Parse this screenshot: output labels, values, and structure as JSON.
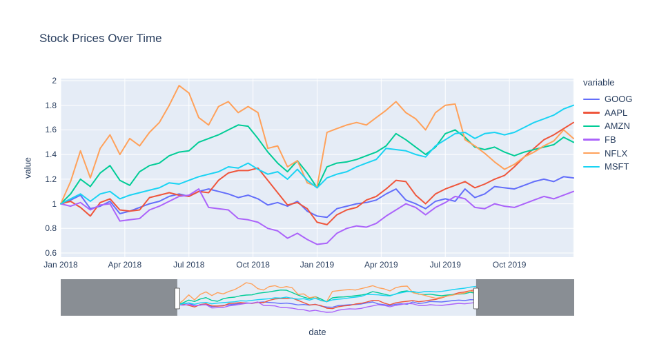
{
  "header": {
    "title": "Stock Prices Over Time"
  },
  "axes": {
    "x_title": "date",
    "y_title": "value"
  },
  "legend": {
    "title": "variable"
  },
  "colors": {
    "plot_bg": "#E5ECF6",
    "grid": "#FFFFFF",
    "text": "#2A3F5F",
    "slider_mask": "#898E94",
    "slider_handle_fill": "#FFFFFF",
    "slider_handle_border": "#666666"
  },
  "chart_data": {
    "type": "line",
    "title": "Stock Prices Over Time",
    "xlabel": "date",
    "ylabel": "value",
    "legend_title": "variable",
    "legend_position": "right",
    "grid": true,
    "ylim": [
      0.566,
      2.017
    ],
    "y_ticks": [
      0.6,
      0.8,
      1,
      1.2,
      1.4,
      1.6,
      1.8,
      2
    ],
    "y_tick_labels": [
      "0.6",
      "0.8",
      "1",
      "1.2",
      "1.4",
      "1.6",
      "1.8",
      "2"
    ],
    "x_tick_labels": [
      "Jan 2018",
      "Apr 2018",
      "Jul 2018",
      "Oct 2018",
      "Jan 2019",
      "Apr 2019",
      "Jul 2019",
      "Oct 2019"
    ],
    "x_tick_month_offsets": [
      0,
      3,
      6,
      9,
      12,
      15,
      18,
      21
    ],
    "x": [
      "2018-01-01",
      "2018-01-15",
      "2018-01-29",
      "2018-02-12",
      "2018-02-26",
      "2018-03-12",
      "2018-03-26",
      "2018-04-09",
      "2018-04-23",
      "2018-05-07",
      "2018-05-21",
      "2018-06-04",
      "2018-06-18",
      "2018-07-02",
      "2018-07-16",
      "2018-07-30",
      "2018-08-13",
      "2018-08-27",
      "2018-09-10",
      "2018-09-24",
      "2018-10-08",
      "2018-10-22",
      "2018-11-05",
      "2018-11-19",
      "2018-12-03",
      "2018-12-17",
      "2018-12-31",
      "2019-01-14",
      "2019-01-28",
      "2019-02-11",
      "2019-02-25",
      "2019-03-11",
      "2019-03-25",
      "2019-04-08",
      "2019-04-22",
      "2019-05-06",
      "2019-05-20",
      "2019-06-03",
      "2019-06-17",
      "2019-07-01",
      "2019-07-15",
      "2019-07-29",
      "2019-08-12",
      "2019-08-26",
      "2019-09-09",
      "2019-09-23",
      "2019-10-07",
      "2019-10-21",
      "2019-11-04",
      "2019-11-18",
      "2019-12-02",
      "2019-12-16",
      "2019-12-30"
    ],
    "series": [
      {
        "name": "GOOG",
        "color": "#636EFA",
        "values": [
          1.0,
          1.03,
          1.07,
          0.96,
          0.98,
          1.02,
          0.92,
          0.94,
          0.97,
          1.0,
          1.02,
          1.06,
          1.08,
          1.06,
          1.1,
          1.12,
          1.1,
          1.08,
          1.05,
          1.07,
          1.04,
          0.99,
          1.01,
          0.98,
          1.02,
          0.94,
          0.9,
          0.89,
          0.96,
          0.98,
          1.0,
          1.01,
          1.03,
          1.08,
          1.12,
          1.03,
          1.0,
          0.96,
          1.02,
          1.04,
          1.02,
          1.12,
          1.05,
          1.08,
          1.14,
          1.13,
          1.12,
          1.15,
          1.18,
          1.2,
          1.18,
          1.22,
          1.21
        ]
      },
      {
        "name": "AAPL",
        "color": "#EF553B",
        "values": [
          1.0,
          1.02,
          0.97,
          0.9,
          1.01,
          1.04,
          0.95,
          0.94,
          0.95,
          1.05,
          1.07,
          1.09,
          1.07,
          1.06,
          1.1,
          1.09,
          1.19,
          1.25,
          1.27,
          1.27,
          1.29,
          1.19,
          1.09,
          0.99,
          1.01,
          0.96,
          0.85,
          0.83,
          0.91,
          0.95,
          0.97,
          1.03,
          1.06,
          1.12,
          1.19,
          1.18,
          1.07,
          1.0,
          1.08,
          1.12,
          1.15,
          1.18,
          1.13,
          1.16,
          1.2,
          1.23,
          1.3,
          1.38,
          1.45,
          1.52,
          1.56,
          1.61,
          1.66
        ]
      },
      {
        "name": "AMZN",
        "color": "#00CC96",
        "values": [
          1.0,
          1.08,
          1.2,
          1.14,
          1.25,
          1.31,
          1.19,
          1.15,
          1.26,
          1.31,
          1.33,
          1.39,
          1.42,
          1.43,
          1.5,
          1.53,
          1.56,
          1.6,
          1.64,
          1.63,
          1.53,
          1.42,
          1.33,
          1.26,
          1.35,
          1.25,
          1.13,
          1.3,
          1.33,
          1.34,
          1.36,
          1.39,
          1.42,
          1.47,
          1.57,
          1.52,
          1.46,
          1.4,
          1.46,
          1.57,
          1.6,
          1.54,
          1.46,
          1.44,
          1.46,
          1.42,
          1.39,
          1.42,
          1.44,
          1.46,
          1.48,
          1.54,
          1.5
        ]
      },
      {
        "name": "FB",
        "color": "#AB63FA",
        "values": [
          1.0,
          0.98,
          1.01,
          0.95,
          0.99,
          1.0,
          0.86,
          0.87,
          0.88,
          0.95,
          0.98,
          1.02,
          1.06,
          1.07,
          1.12,
          0.97,
          0.96,
          0.95,
          0.88,
          0.87,
          0.85,
          0.8,
          0.78,
          0.72,
          0.76,
          0.71,
          0.67,
          0.68,
          0.76,
          0.8,
          0.82,
          0.81,
          0.84,
          0.9,
          0.95,
          1.0,
          0.97,
          0.91,
          0.97,
          1.01,
          1.06,
          1.04,
          0.97,
          0.96,
          1.0,
          0.98,
          0.97,
          1.0,
          1.03,
          1.06,
          1.04,
          1.07,
          1.1
        ]
      },
      {
        "name": "NFLX",
        "color": "#FFA15A",
        "values": [
          1.0,
          1.18,
          1.43,
          1.21,
          1.45,
          1.56,
          1.4,
          1.53,
          1.47,
          1.58,
          1.66,
          1.8,
          1.96,
          1.9,
          1.7,
          1.64,
          1.79,
          1.83,
          1.74,
          1.79,
          1.74,
          1.45,
          1.47,
          1.3,
          1.35,
          1.17,
          1.14,
          1.58,
          1.61,
          1.64,
          1.66,
          1.64,
          1.7,
          1.76,
          1.83,
          1.74,
          1.69,
          1.6,
          1.74,
          1.8,
          1.81,
          1.52,
          1.47,
          1.41,
          1.34,
          1.28,
          1.32,
          1.38,
          1.42,
          1.47,
          1.51,
          1.6,
          1.53
        ]
      },
      {
        "name": "MSFT",
        "color": "#19D3F3",
        "values": [
          1.0,
          1.04,
          1.08,
          1.02,
          1.08,
          1.1,
          1.04,
          1.07,
          1.09,
          1.11,
          1.13,
          1.17,
          1.16,
          1.19,
          1.22,
          1.24,
          1.26,
          1.3,
          1.29,
          1.33,
          1.28,
          1.24,
          1.26,
          1.2,
          1.28,
          1.19,
          1.13,
          1.21,
          1.24,
          1.26,
          1.3,
          1.33,
          1.36,
          1.45,
          1.44,
          1.43,
          1.4,
          1.38,
          1.47,
          1.52,
          1.57,
          1.58,
          1.53,
          1.57,
          1.58,
          1.56,
          1.58,
          1.62,
          1.66,
          1.69,
          1.72,
          1.77,
          1.8
        ]
      }
    ],
    "rangeslider": {
      "visible": true,
      "selected_range_frac": [
        0.227,
        0.809
      ]
    }
  }
}
